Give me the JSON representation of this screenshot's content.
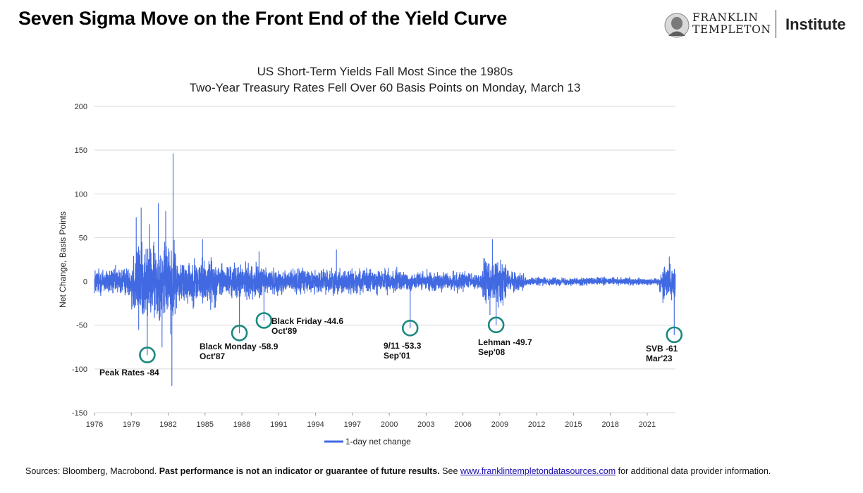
{
  "page": {
    "title": "Seven Sigma Move on the Front End of the Yield Curve",
    "logo": {
      "line1": "FRANKLIN",
      "line2": "TEMPLETON",
      "institute": "Institute"
    }
  },
  "chart_data": {
    "type": "line",
    "title": "US Short-Term Yields Fall Most Since the 1980s",
    "subtitle": "Two-Year Treasury Rates Fell Over 60 Basis Points on Monday, March 13",
    "ylabel": "Net Change, Basis Points",
    "xlabel": "",
    "xlim": [
      1976,
      2023.3
    ],
    "ylim": [
      -150,
      200
    ],
    "yticks": [
      200,
      150,
      100,
      50,
      0,
      -50,
      -100,
      -150
    ],
    "xticks": [
      "1976",
      "1979",
      "1982",
      "1985",
      "1988",
      "1991",
      "1994",
      "1997",
      "2000",
      "2003",
      "2006",
      "2009",
      "2012",
      "2015",
      "2018",
      "2021"
    ],
    "grid": true,
    "legend": "bottom",
    "series": [
      {
        "name": "1-day net change",
        "color": "#4169e1",
        "extremes": [
          {
            "x": 1979.4,
            "y": 73
          },
          {
            "x": 1979.6,
            "y": -55
          },
          {
            "x": 1979.8,
            "y": 84
          },
          {
            "x": 1980.3,
            "y": -84
          },
          {
            "x": 1980.5,
            "y": 65
          },
          {
            "x": 1981.2,
            "y": 89
          },
          {
            "x": 1981.5,
            "y": -75
          },
          {
            "x": 1981.8,
            "y": 80
          },
          {
            "x": 1982.2,
            "y": -60
          },
          {
            "x": 1982.3,
            "y": -119
          },
          {
            "x": 1982.4,
            "y": 146
          },
          {
            "x": 1984.8,
            "y": 48
          },
          {
            "x": 1987.8,
            "y": -58.9
          },
          {
            "x": 1989.4,
            "y": 34
          },
          {
            "x": 1989.8,
            "y": -44.6
          },
          {
            "x": 1995.7,
            "y": 36
          },
          {
            "x": 2001.7,
            "y": -53.3
          },
          {
            "x": 2008.2,
            "y": -38
          },
          {
            "x": 2008.4,
            "y": 48
          },
          {
            "x": 2008.7,
            "y": -49.7
          },
          {
            "x": 2022.8,
            "y": 28
          },
          {
            "x": 2023.2,
            "y": -61
          }
        ]
      }
    ],
    "annotations": [
      {
        "label": "Peak Rates -84",
        "sub": "",
        "x": 1980.3,
        "y": -84
      },
      {
        "label": "Black Monday -58.9",
        "sub": "Oct'87",
        "x": 1987.8,
        "y": -58.9
      },
      {
        "label": "Black Friday -44.6",
        "sub": "Oct'89",
        "x": 1989.8,
        "y": -44.6
      },
      {
        "label": "9/11 -53.3",
        "sub": "Sep'01",
        "x": 2001.7,
        "y": -53.3
      },
      {
        "label": "Lehman -49.7",
        "sub": "Sep'08",
        "x": 2008.7,
        "y": -49.7
      },
      {
        "label": "SVB -61",
        "sub": "Mar'23",
        "x": 2023.2,
        "y": -61
      }
    ],
    "annotation_color": "#1a8a80"
  },
  "footer": {
    "sources_prefix": "Sources: Bloomberg, Macrobond. ",
    "disclaimer": "Past performance is not an indicator or guarantee of future results.",
    "see": " See ",
    "link": "www.franklintempletondatasources.com",
    "suffix": " for additional data provider information."
  }
}
